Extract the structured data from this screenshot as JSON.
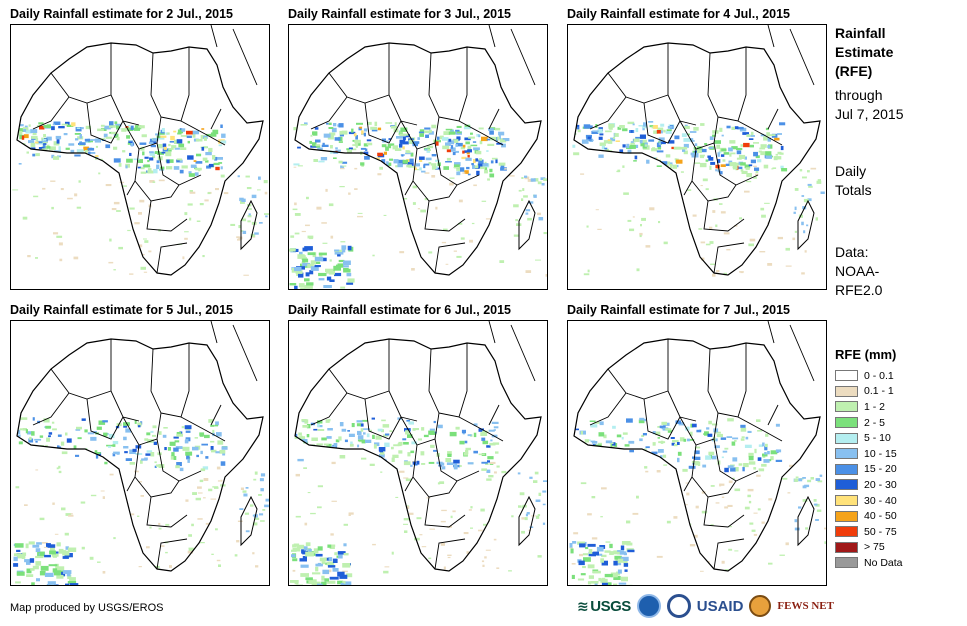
{
  "panels": [
    {
      "title": "Daily Rainfall estimate for 2 Jul., 2015",
      "intensity": 0.95,
      "south_wet": false
    },
    {
      "title": "Daily Rainfall estimate for 3 Jul., 2015",
      "intensity": 1.0,
      "south_wet": true
    },
    {
      "title": "Daily Rainfall estimate for 4 Jul., 2015",
      "intensity": 0.9,
      "south_wet": false
    },
    {
      "title": "Daily Rainfall estimate for 5 Jul., 2015",
      "intensity": 0.55,
      "south_wet": true
    },
    {
      "title": "Daily Rainfall estimate for 6 Jul., 2015",
      "intensity": 0.6,
      "south_wet": true
    },
    {
      "title": "Daily Rainfall estimate for 7 Jul., 2015",
      "intensity": 0.5,
      "south_wet": true
    }
  ],
  "side": {
    "title_lines": [
      "Rainfall",
      "Estimate",
      "(RFE)"
    ],
    "through_lines": [
      "through",
      "Jul 7, 2015"
    ],
    "totals_lines": [
      "Daily",
      "Totals"
    ],
    "data_lines": [
      "Data:",
      "NOAA-",
      "RFE2.0"
    ]
  },
  "legend": {
    "title": "RFE (mm)",
    "items": [
      {
        "label": "0 - 0.1",
        "color": "#ffffff"
      },
      {
        "label": "0.1 - 1",
        "color": "#ecdcc0"
      },
      {
        "label": "1 - 2",
        "color": "#bff0b0"
      },
      {
        "label": "2 - 5",
        "color": "#7be07b"
      },
      {
        "label": "5 - 10",
        "color": "#b4eef0"
      },
      {
        "label": "10 - 15",
        "color": "#88c0f0"
      },
      {
        "label": "15 - 20",
        "color": "#4b90e6"
      },
      {
        "label": "20 - 30",
        "color": "#1f5ed8"
      },
      {
        "label": "30 - 40",
        "color": "#ffe27a"
      },
      {
        "label": "40 - 50",
        "color": "#f5a31a"
      },
      {
        "label": "50 - 75",
        "color": "#f03c0a"
      },
      {
        "label": "> 75",
        "color": "#a01818"
      },
      {
        "label": "No Data",
        "color": "#999999"
      }
    ]
  },
  "credit": "Map produced by USGS/EROS",
  "logos": {
    "usgs": "USGS",
    "usaid": "USAID",
    "fews": "FEWS NET"
  }
}
